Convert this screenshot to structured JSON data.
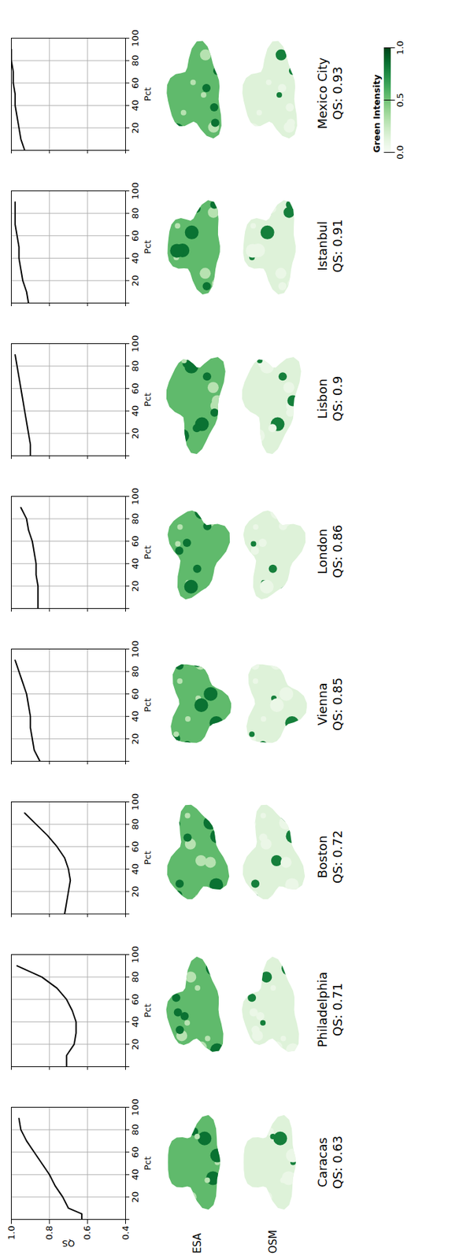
{
  "chart_data": [
    {
      "type": "line",
      "title": "Caracas",
      "subtitle": "QS: 0.63",
      "x_label": "Pct",
      "y_label": "QS",
      "color": "#000000",
      "grid": true,
      "tick_labels": true,
      "x": [
        0,
        5,
        10,
        20,
        30,
        40,
        50,
        60,
        70,
        80,
        90
      ],
      "values": [
        0.63,
        0.63,
        0.7,
        0.73,
        0.77,
        0.8,
        0.84,
        0.88,
        0.92,
        0.95,
        0.96
      ],
      "xlim": [
        0,
        100
      ],
      "xticks": [
        0,
        20,
        40,
        60,
        80,
        100
      ],
      "ylim": [
        0.4,
        1.0
      ],
      "yticks": [
        0.4,
        0.6,
        0.8,
        {
          "value": 1.0,
          "label": "1.0"
        }
      ]
    },
    {
      "type": "line",
      "title": "Philadelphia",
      "subtitle": "QS: 0.71",
      "x_label": "Pct",
      "color": "#000000",
      "grid": true,
      "tick_labels": "x",
      "x": [
        0,
        10,
        20,
        30,
        40,
        50,
        60,
        70,
        80,
        90
      ],
      "values": [
        0.71,
        0.71,
        0.67,
        0.66,
        0.66,
        0.68,
        0.71,
        0.76,
        0.84,
        0.97
      ],
      "xlim": [
        0,
        100
      ],
      "xticks": [
        0,
        20,
        40,
        60,
        80,
        100
      ],
      "ylim": [
        0.4,
        1.0
      ],
      "yticks": [
        0.4,
        0.6,
        0.8,
        {
          "value": 1.0,
          "label": "1.0"
        }
      ]
    },
    {
      "type": "line",
      "title": "Boston",
      "subtitle": "QS: 0.72",
      "x_label": "Pct",
      "color": "#000000",
      "grid": true,
      "tick_labels": "x",
      "x": [
        0,
        10,
        20,
        30,
        40,
        50,
        60,
        70,
        80,
        90
      ],
      "values": [
        0.72,
        0.71,
        0.7,
        0.69,
        0.7,
        0.72,
        0.76,
        0.81,
        0.87,
        0.93
      ],
      "xlim": [
        0,
        100
      ],
      "xticks": [
        0,
        20,
        40,
        60,
        80,
        100
      ],
      "ylim": [
        0.4,
        1.0
      ],
      "yticks": [
        0.4,
        0.6,
        0.8,
        {
          "value": 1.0,
          "label": "1.0"
        }
      ]
    },
    {
      "type": "line",
      "title": "Vienna",
      "subtitle": "QS: 0.85",
      "x_label": "Pct",
      "color": "#000000",
      "grid": true,
      "tick_labels": "x",
      "x": [
        0,
        10,
        20,
        30,
        40,
        50,
        60,
        70,
        80,
        90
      ],
      "values": [
        0.85,
        0.88,
        0.89,
        0.9,
        0.9,
        0.91,
        0.92,
        0.94,
        0.96,
        0.98
      ],
      "xlim": [
        0,
        100
      ],
      "xticks": [
        0,
        20,
        40,
        60,
        80,
        100
      ],
      "ylim": [
        0.4,
        1.0
      ],
      "yticks": [
        0.4,
        0.6,
        0.8,
        {
          "value": 1.0,
          "label": "1.0"
        }
      ]
    },
    {
      "type": "line",
      "title": "London",
      "subtitle": "QS: 0.86",
      "x_label": "Pct",
      "color": "#000000",
      "grid": true,
      "tick_labels": "x",
      "x": [
        0,
        10,
        20,
        30,
        40,
        50,
        60,
        70,
        80,
        90
      ],
      "values": [
        0.86,
        0.86,
        0.86,
        0.87,
        0.87,
        0.88,
        0.89,
        0.91,
        0.92,
        0.95
      ],
      "xlim": [
        0,
        100
      ],
      "xticks": [
        0,
        20,
        40,
        60,
        80,
        100
      ],
      "ylim": [
        0.4,
        1.0
      ],
      "yticks": [
        0.4,
        0.6,
        0.8,
        {
          "value": 1.0,
          "label": "1.0"
        }
      ]
    },
    {
      "type": "line",
      "title": "Lisbon",
      "subtitle": "QS: 0.9",
      "x_label": "Pct",
      "color": "#000000",
      "grid": true,
      "tick_labels": "x",
      "x": [
        0,
        10,
        20,
        30,
        40,
        50,
        60,
        70,
        80,
        90
      ],
      "values": [
        0.9,
        0.9,
        0.91,
        0.92,
        0.93,
        0.94,
        0.95,
        0.96,
        0.97,
        0.98
      ],
      "xlim": [
        0,
        100
      ],
      "xticks": [
        0,
        20,
        40,
        60,
        80,
        100
      ],
      "ylim": [
        0.4,
        1.0
      ],
      "yticks": [
        0.4,
        0.6,
        0.8,
        {
          "value": 1.0,
          "label": "1.0"
        }
      ]
    },
    {
      "type": "line",
      "title": "Istanbul",
      "subtitle": "QS: 0.91",
      "x_label": "Pct",
      "color": "#000000",
      "grid": true,
      "tick_labels": "x",
      "x": [
        0,
        10,
        20,
        30,
        40,
        50,
        60,
        70,
        80,
        90
      ],
      "values": [
        0.91,
        0.92,
        0.94,
        0.95,
        0.96,
        0.96,
        0.97,
        0.98,
        0.98,
        0.98
      ],
      "xlim": [
        0,
        100
      ],
      "xticks": [
        0,
        20,
        40,
        60,
        80,
        100
      ],
      "ylim": [
        0.4,
        1.0
      ],
      "yticks": [
        0.4,
        0.6,
        0.8,
        {
          "value": 1.0,
          "label": "1.0"
        }
      ]
    },
    {
      "type": "line",
      "title": "Mexico City",
      "subtitle": "QS: 0.93",
      "x_label": "Pct",
      "color": "#000000",
      "grid": true,
      "tick_labels": "x",
      "x": [
        0,
        10,
        20,
        30,
        40,
        50,
        60,
        70,
        80,
        90
      ],
      "values": [
        0.93,
        0.95,
        0.96,
        0.97,
        0.98,
        0.98,
        0.99,
        0.99,
        1.0,
        1.0
      ],
      "xlim": [
        0,
        100
      ],
      "xticks": [
        0,
        20,
        40,
        60,
        80,
        100
      ],
      "ylim": [
        0.4,
        1.0
      ],
      "yticks": [
        0.4,
        0.6,
        0.8,
        {
          "value": 1.0,
          "label": "1.0"
        }
      ]
    }
  ],
  "images": {
    "rows": [
      "ESA",
      "OSM"
    ],
    "colorbar": {
      "label": "Green Intensity",
      "range": [
        0,
        1
      ],
      "ticks": [
        {
          "value": 0,
          "label": "0.0"
        },
        {
          "value": 0.5,
          "label": "0.5"
        },
        {
          "value": 1.0,
          "label": "1.0"
        }
      ]
    }
  }
}
